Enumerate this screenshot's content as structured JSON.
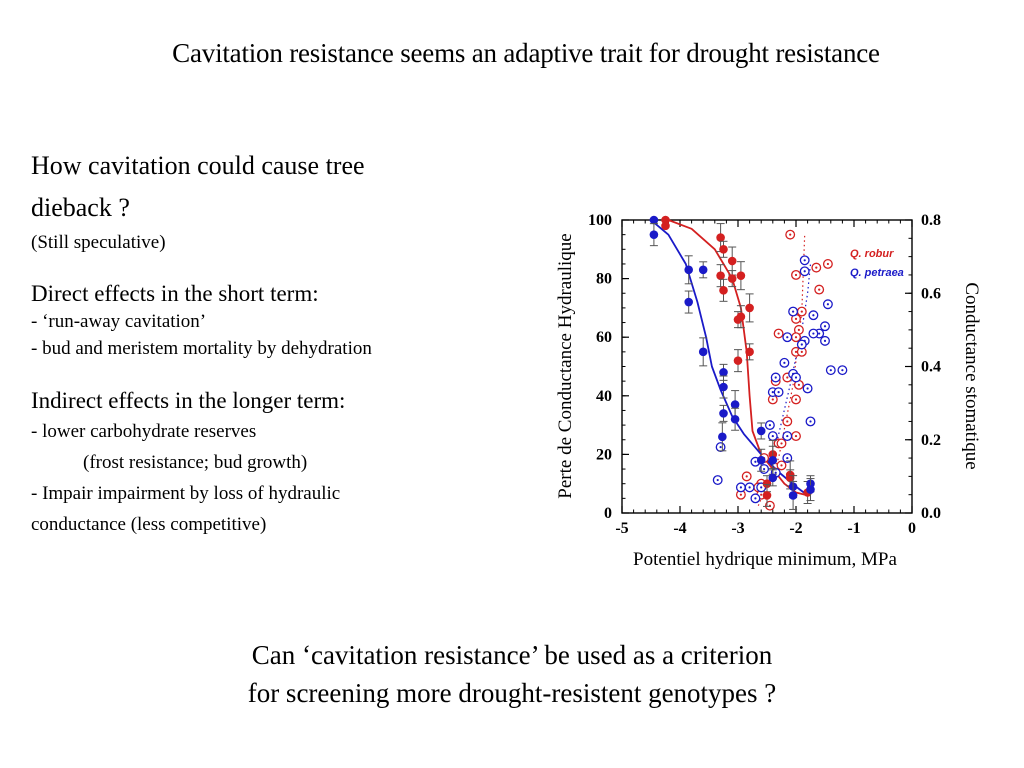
{
  "slide": {
    "title": "Cavitation resistance seems an adaptive trait for drought resistance",
    "left_text": {
      "heading_line1": "How cavitation could cause tree",
      "heading_line2": "dieback ?",
      "note": "(Still speculative)",
      "direct_heading": "Direct effects in the short term:",
      "direct_items": [
        "- ‘run-away cavitation’",
        "- bud and meristem mortality by dehydration"
      ],
      "indirect_heading": "Indirect effects in the longer term:",
      "indirect_item1": "- lower carbohydrate reserves",
      "indirect_item1_detail": "(frost resistance; bud growth)",
      "indirect_item2_line1": "- Impair impairment by loss of hydraulic",
      "indirect_item2_line2": "conductance (less competitive)"
    },
    "bottom_question_line1": "Can ‘cavitation resistance’ be used as a criterion",
    "bottom_question_line2": "for screening more drought-resistent genotypes ?"
  },
  "chart_data": {
    "type": "scatter",
    "xlabel": "Potentiel hydrique minimum, MPa",
    "ylabel": "Perte de Conductance Hydraulique",
    "y2label": "Conductance stomatique",
    "xlim": [
      -5,
      0
    ],
    "ylim": [
      0,
      100
    ],
    "y2lim": [
      0.0,
      0.8
    ],
    "x_ticks": [
      "-5",
      "-4",
      "-3",
      "-2",
      "-1",
      "0"
    ],
    "y_ticks": [
      "0",
      "20",
      "40",
      "60",
      "80",
      "100"
    ],
    "y2_ticks": [
      "0.0",
      "0.2",
      "0.4",
      "0.6",
      "0.8"
    ],
    "grid": false,
    "legend_position": "top-right",
    "colors": {
      "robur": "#d42020",
      "petraea": "#1a1ac8"
    },
    "series": [
      {
        "name": "Q. robur",
        "kind": "loss of hydraulic conductance (filled, left axis)",
        "points": [
          [
            -4.25,
            100
          ],
          [
            -4.25,
            98
          ],
          [
            -3.3,
            94
          ],
          [
            -3.25,
            90
          ],
          [
            -3.3,
            81
          ],
          [
            -3.1,
            86
          ],
          [
            -3.1,
            80
          ],
          [
            -3.25,
            76
          ],
          [
            -2.95,
            81
          ],
          [
            -3.0,
            66
          ],
          [
            -2.95,
            67
          ],
          [
            -2.8,
            70
          ],
          [
            -2.8,
            55
          ],
          [
            -3.0,
            52
          ],
          [
            -2.4,
            20
          ],
          [
            -2.5,
            10
          ],
          [
            -2.5,
            6
          ],
          [
            -2.1,
            13
          ],
          [
            -2.1,
            12
          ],
          [
            -1.8,
            7
          ]
        ],
        "fit": [
          [
            -4.2,
            100
          ],
          [
            -3.8,
            97
          ],
          [
            -3.4,
            90
          ],
          [
            -3.1,
            80
          ],
          [
            -2.95,
            70
          ],
          [
            -2.85,
            55
          ],
          [
            -2.8,
            40
          ],
          [
            -2.75,
            28
          ],
          [
            -2.6,
            20
          ],
          [
            -2.4,
            15
          ],
          [
            -2.2,
            10
          ],
          [
            -2.0,
            7
          ],
          [
            -1.8,
            6
          ]
        ]
      },
      {
        "name": "Q. petraea",
        "kind": "loss of hydraulic conductance (filled, left axis)",
        "points": [
          [
            -4.45,
            100
          ],
          [
            -4.45,
            95
          ],
          [
            -3.85,
            83
          ],
          [
            -3.6,
            83
          ],
          [
            -3.85,
            72
          ],
          [
            -3.6,
            55
          ],
          [
            -3.25,
            48
          ],
          [
            -3.25,
            43
          ],
          [
            -3.05,
            37
          ],
          [
            -3.25,
            34
          ],
          [
            -3.05,
            32
          ],
          [
            -3.27,
            26
          ],
          [
            -2.6,
            28
          ],
          [
            -2.6,
            18
          ],
          [
            -2.4,
            18
          ],
          [
            -2.4,
            12
          ],
          [
            -2.05,
            9
          ],
          [
            -2.05,
            6
          ],
          [
            -1.75,
            10
          ],
          [
            -1.75,
            8
          ]
        ],
        "fit": [
          [
            -4.5,
            100
          ],
          [
            -4.2,
            95
          ],
          [
            -3.9,
            85
          ],
          [
            -3.7,
            72
          ],
          [
            -3.55,
            60
          ],
          [
            -3.45,
            50
          ],
          [
            -3.3,
            42
          ],
          [
            -3.1,
            33
          ],
          [
            -2.9,
            27
          ],
          [
            -2.6,
            20
          ],
          [
            -2.3,
            14
          ],
          [
            -2.0,
            9
          ],
          [
            -1.8,
            6
          ]
        ]
      },
      {
        "name": "Q. robur stomatal",
        "kind": "stomatal conductance (open, right axis)",
        "points": [
          [
            -2.1,
            0.76
          ],
          [
            -1.65,
            0.67
          ],
          [
            -1.45,
            0.68
          ],
          [
            -1.6,
            0.61
          ],
          [
            -2.0,
            0.65
          ],
          [
            -1.9,
            0.55
          ],
          [
            -2.0,
            0.53
          ],
          [
            -1.95,
            0.5
          ],
          [
            -2.0,
            0.48
          ],
          [
            -2.3,
            0.49
          ],
          [
            -2.0,
            0.44
          ],
          [
            -1.9,
            0.44
          ],
          [
            -1.95,
            0.35
          ],
          [
            -2.15,
            0.37
          ],
          [
            -2.35,
            0.36
          ],
          [
            -2.4,
            0.31
          ],
          [
            -2.0,
            0.31
          ],
          [
            -2.15,
            0.25
          ],
          [
            -2.0,
            0.21
          ],
          [
            -2.3,
            0.19
          ],
          [
            -2.25,
            0.19
          ],
          [
            -2.25,
            0.13
          ],
          [
            -2.55,
            0.15
          ],
          [
            -2.85,
            0.1
          ],
          [
            -2.6,
            0.08
          ],
          [
            -2.65,
            0.07
          ],
          [
            -2.95,
            0.05
          ],
          [
            -2.6,
            0.05
          ],
          [
            -2.45,
            0.02
          ]
        ]
      },
      {
        "name": "Q. petraea stomatal",
        "kind": "stomatal conductance (open, right axis)",
        "points": [
          [
            -1.85,
            0.69
          ],
          [
            -1.85,
            0.66
          ],
          [
            -1.45,
            0.57
          ],
          [
            -2.05,
            0.55
          ],
          [
            -1.7,
            0.54
          ],
          [
            -2.15,
            0.48
          ],
          [
            -1.6,
            0.49
          ],
          [
            -1.7,
            0.49
          ],
          [
            -1.85,
            0.47
          ],
          [
            -1.9,
            0.46
          ],
          [
            -1.5,
            0.51
          ],
          [
            -1.5,
            0.47
          ],
          [
            -1.4,
            0.39
          ],
          [
            -1.2,
            0.39
          ],
          [
            -2.2,
            0.41
          ],
          [
            -2.05,
            0.38
          ],
          [
            -2.0,
            0.37
          ],
          [
            -2.35,
            0.37
          ],
          [
            -2.4,
            0.33
          ],
          [
            -2.3,
            0.33
          ],
          [
            -1.8,
            0.34
          ],
          [
            -2.45,
            0.24
          ],
          [
            -2.4,
            0.21
          ],
          [
            -2.15,
            0.21
          ],
          [
            -1.75,
            0.25
          ],
          [
            -3.3,
            0.18
          ],
          [
            -2.7,
            0.14
          ],
          [
            -2.15,
            0.15
          ],
          [
            -2.55,
            0.12
          ],
          [
            -2.35,
            0.11
          ],
          [
            -3.35,
            0.09
          ],
          [
            -2.95,
            0.07
          ],
          [
            -2.8,
            0.07
          ],
          [
            -2.6,
            0.07
          ],
          [
            -2.7,
            0.04
          ]
        ]
      }
    ],
    "stomatal_trend": {
      "robur": [
        [
          -2.65,
          0.02
        ],
        [
          -2.3,
          0.15
        ],
        [
          -2.05,
          0.35
        ],
        [
          -1.9,
          0.55
        ],
        [
          -1.85,
          0.76
        ]
      ],
      "petraea": [
        [
          -2.35,
          0.18
        ],
        [
          -2.1,
          0.35
        ],
        [
          -1.9,
          0.5
        ],
        [
          -1.8,
          0.6
        ],
        [
          -1.75,
          0.68
        ]
      ]
    }
  }
}
